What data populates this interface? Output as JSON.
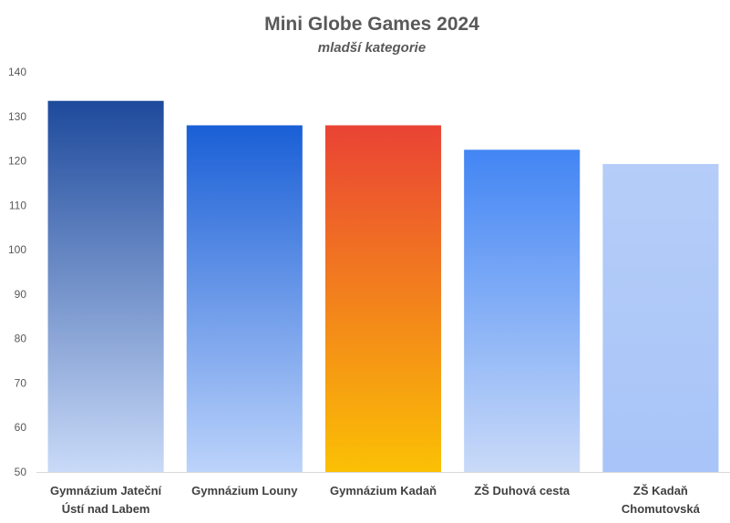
{
  "chart_data": {
    "type": "bar",
    "title": "Mini Globe Games 2024",
    "subtitle": "mladší kategorie",
    "categories": [
      [
        "Gymnázium Jateční",
        "Ústí nad Labem"
      ],
      [
        "Gymnázium Louny"
      ],
      [
        "Gymnázium Kadaň"
      ],
      [
        "ZŠ Duhová cesta"
      ],
      [
        "ZŠ Kadaň",
        "Chomutovská"
      ]
    ],
    "values": [
      133.5,
      128,
      128,
      122.5,
      119.3
    ],
    "ylim": [
      50,
      140
    ],
    "yticks": [
      50,
      60,
      70,
      80,
      90,
      100,
      110,
      120,
      130,
      140
    ],
    "grid": false,
    "legend": "none",
    "bar_gradients": [
      [
        "#1e4a9c",
        "#c9daf8"
      ],
      [
        "#1a5fd6",
        "#bcd3fb"
      ],
      [
        "#ea4335",
        "#fbc004"
      ],
      [
        "#4285f4",
        "#c9daf8"
      ],
      [
        "#b5cdf8",
        "#a8c4f8"
      ]
    ]
  }
}
